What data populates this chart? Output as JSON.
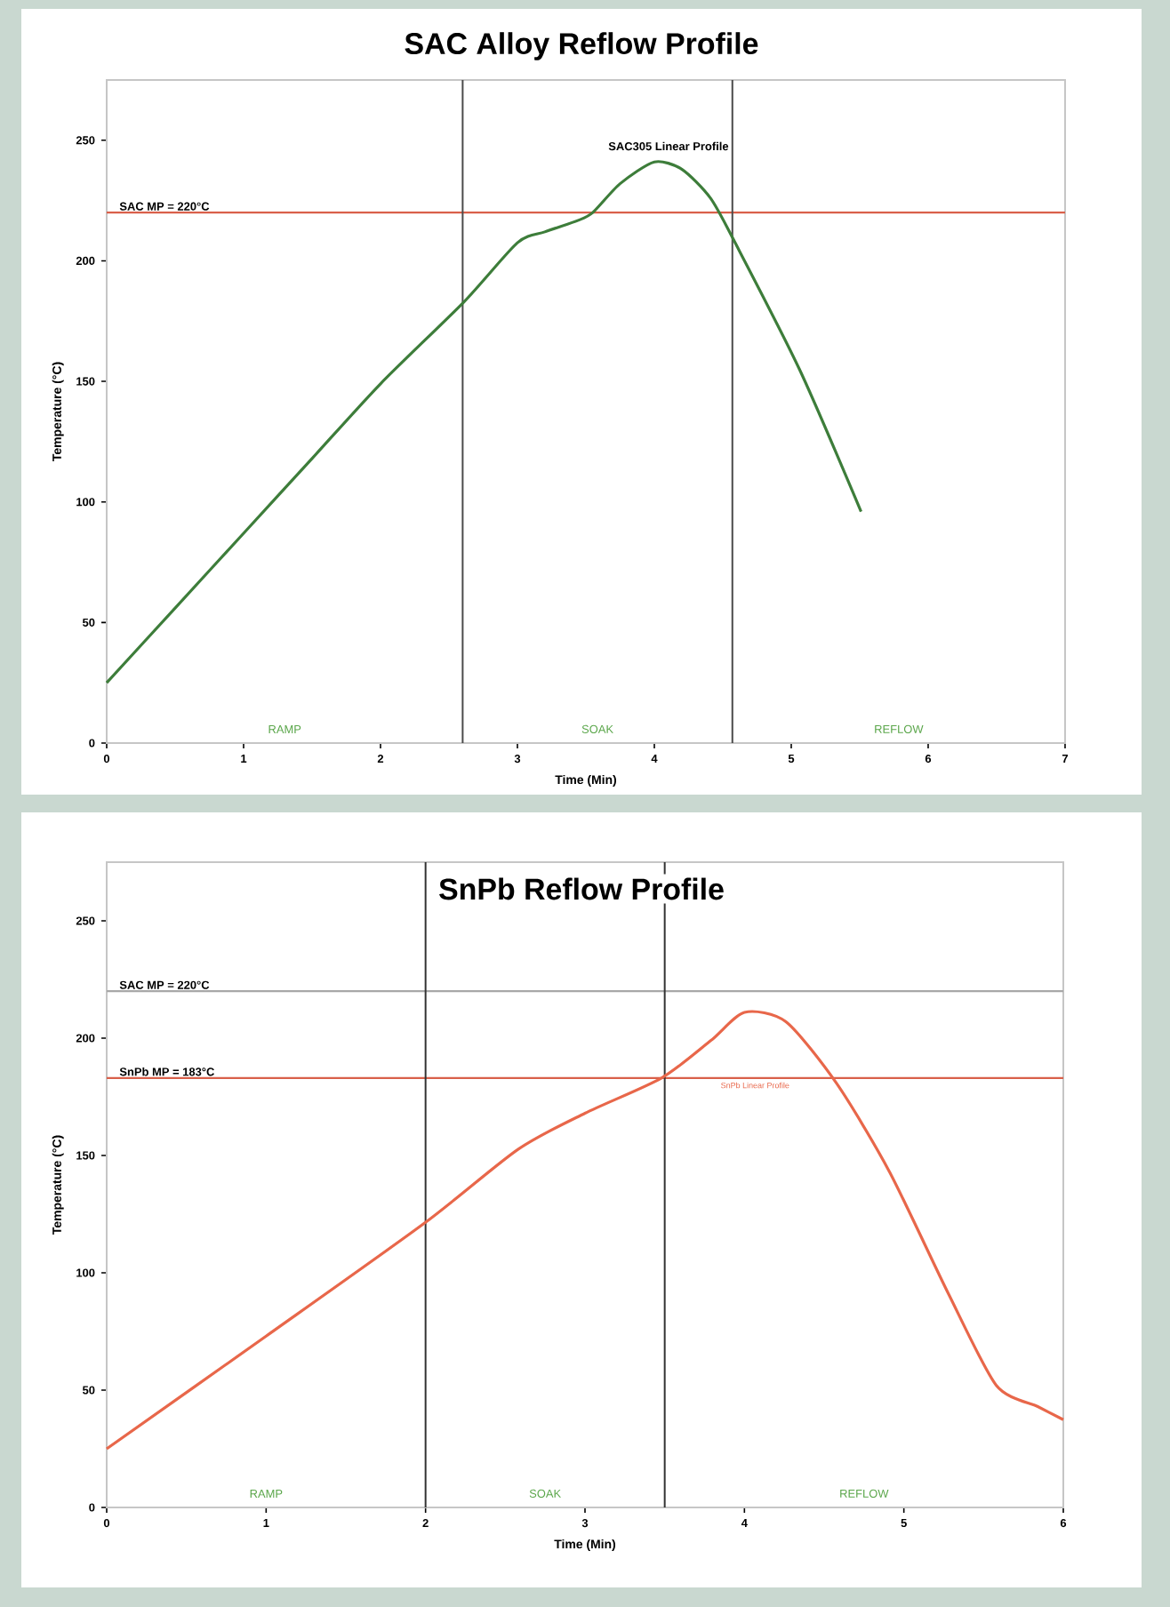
{
  "chart_data": [
    {
      "type": "line",
      "title": "SAC Alloy Reflow Profile",
      "xlabel": "Time (Min)",
      "ylabel": "Temperature (°C)",
      "xlim": [
        0,
        7
      ],
      "ylim": [
        0,
        275
      ],
      "xticks": [
        0,
        1,
        2,
        3,
        4,
        5,
        6,
        7
      ],
      "yticks": [
        0,
        50,
        100,
        150,
        200,
        250
      ],
      "grid": false,
      "series": [
        {
          "color": "#3d7d3a",
          "x": [
            0,
            0.5,
            1,
            1.5,
            2,
            2.61,
            3.0,
            3.2,
            3.44,
            3.55,
            3.75,
            4.0,
            4.2,
            4.41,
            4.59,
            5.06,
            5.51
          ],
          "values": [
            25,
            56,
            87,
            118,
            149,
            183,
            207.5,
            212,
            216.7,
            220,
            232,
            241,
            238,
            226,
            207.5,
            155,
            96
          ]
        }
      ],
      "ref_lines": [
        {
          "axis": "y",
          "value": 220,
          "label": "SAC MP = 220°C",
          "color": "#d9604a"
        },
        {
          "axis": "x",
          "value": 2.6,
          "color": "#4a4a4a"
        },
        {
          "axis": "x",
          "value": 4.57,
          "color": "#4a4a4a"
        }
      ],
      "annotations": [
        "SAC305 Linear Profile",
        "RAMP",
        "SOAK",
        "REFLOW"
      ]
    },
    {
      "type": "line",
      "title": "SnPb Reflow Profile",
      "xlabel": "Time (Min)",
      "ylabel": "Temperature (°C)",
      "xlim": [
        0,
        6
      ],
      "ylim": [
        0,
        275
      ],
      "xticks": [
        0,
        1,
        2,
        3,
        4,
        5,
        6
      ],
      "yticks": [
        0,
        50,
        100,
        150,
        200,
        250
      ],
      "grid": false,
      "series": [
        {
          "color": "#e8674a",
          "x": [
            0,
            1,
            1.99,
            2.58,
            3.0,
            3.48,
            3.79,
            4.0,
            4.26,
            4.58,
            4.91,
            5.28,
            5.58,
            5.84,
            6.0
          ],
          "values": [
            25,
            73,
            121,
            152.6,
            168,
            183,
            199,
            211,
            207,
            180.5,
            143,
            91,
            52,
            43,
            37.4
          ]
        }
      ],
      "ref_lines": [
        {
          "axis": "y",
          "value": 220,
          "label": "SAC MP = 220°C",
          "color": "#a8a8a8"
        },
        {
          "axis": "y",
          "value": 183,
          "label": "SnPb MP = 183°C",
          "color": "#d9604a"
        },
        {
          "axis": "x",
          "value": 2,
          "color": "#333333"
        },
        {
          "axis": "x",
          "value": 3.5,
          "color": "#333333"
        }
      ],
      "annotations": [
        "SnPb Linear Profile",
        "RAMP",
        "SOAK",
        "REFLOW"
      ]
    }
  ]
}
